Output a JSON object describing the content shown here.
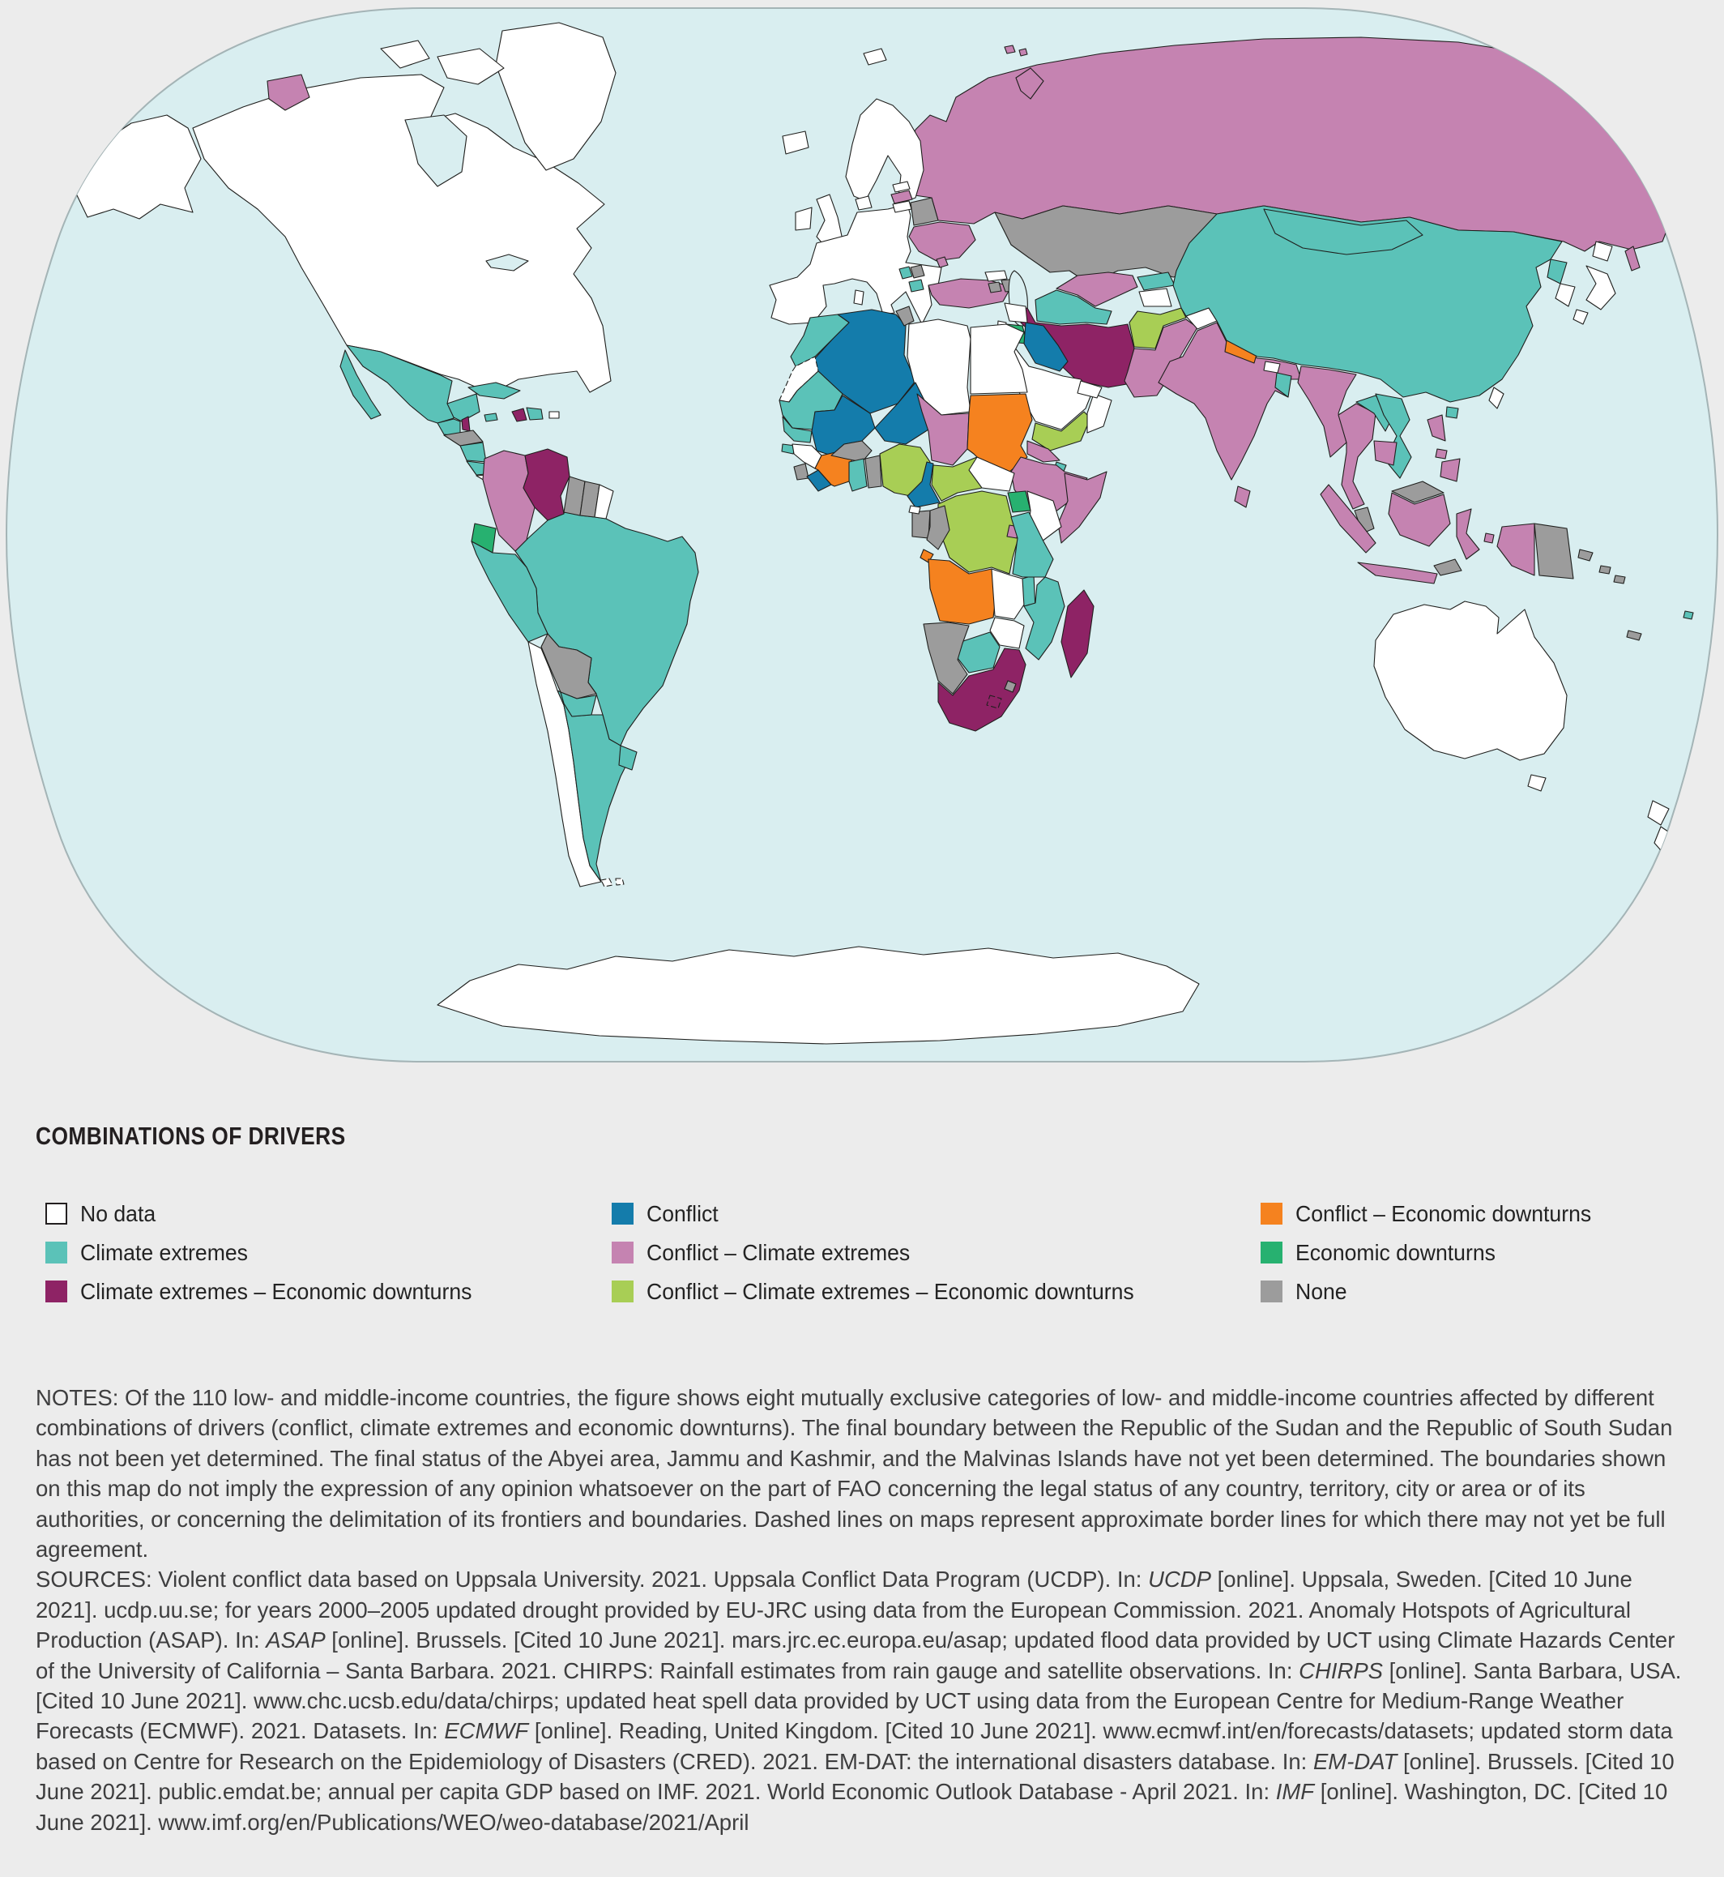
{
  "legend": {
    "title": "COMBINATIONS OF DRIVERS",
    "categories": {
      "no_data": {
        "label": "No data",
        "color": "#FFFFFF"
      },
      "climate": {
        "label": "Climate extremes",
        "color": "#5BC2B8"
      },
      "climate_econ": {
        "label": "Climate extremes – Economic downturns",
        "color": "#8E2365"
      },
      "conflict": {
        "label": "Conflict",
        "color": "#147CAB"
      },
      "conflict_climate": {
        "label": "Conflict – Climate extremes",
        "color": "#C583B1"
      },
      "conflict_climate_econ": {
        "label": "Conflict – Climate extremes – Economic downturns",
        "color": "#A8CE55"
      },
      "conflict_econ": {
        "label": "Conflict – Economic downturns",
        "color": "#F5821F"
      },
      "econ": {
        "label": "Economic downturns",
        "color": "#27B170"
      },
      "none": {
        "label": "None",
        "color": "#9C9C9C"
      }
    },
    "columns": [
      [
        "no_data",
        "climate",
        "climate_econ"
      ],
      [
        "conflict",
        "conflict_climate",
        "conflict_climate_econ"
      ],
      [
        "conflict_econ",
        "econ",
        "none"
      ]
    ]
  },
  "map": {
    "ocean_color": "#D9EEF0",
    "background_color": "#ECECEC",
    "border_color": "#1F1F1D",
    "regions": {
      "alaska": "no_data",
      "canada_usa": "no_data",
      "baffin": "no_data",
      "ellesmere": "no_data",
      "greenland": "no_data",
      "hudson_bay": "water",
      "great_lakes": "water",
      "mexico": "climate",
      "baja": "climate",
      "yucatan": "climate",
      "belize": "climate_econ",
      "guatemala": "climate",
      "honduras": "none",
      "nicaragua": "climate",
      "costa_rica": "climate",
      "panama": "no_data",
      "cuba": "climate",
      "jamaica": "climate",
      "haiti": "climate_econ",
      "dominican_republic": "climate",
      "puerto_rico": "no_data",
      "colombia": "conflict_climate",
      "venezuela": "climate_econ",
      "guyana": "none",
      "suriname": "none",
      "french_guiana": "no_data",
      "ecuador": "econ",
      "peru": "climate",
      "brazil": "climate",
      "bolivia": "none",
      "paraguay": "climate",
      "chile": "no_data",
      "argentina": "climate",
      "uruguay": "climate",
      "falklands": "no_data",
      "iceland": "no_data",
      "ireland": "no_data",
      "uk": "no_data",
      "scandinavia": "no_data",
      "denmark": "no_data",
      "europe_mainland": "no_data",
      "sicily": "no_data",
      "sardinia": "no_data",
      "estonia": "no_data",
      "latvia": "conflict_climate",
      "lithuania": "no_data",
      "belarus": "none",
      "ukraine": "conflict_climate",
      "moldova": "conflict_climate",
      "serbia": "none",
      "bosnia": "climate",
      "albania_mk": "climate",
      "turkey": "conflict_climate",
      "georgia": "no_data",
      "armenia": "none",
      "azerbaijan": "none",
      "russia": "conflict_climate",
      "chukotka": "conflict_climate",
      "novaya_zemlya": "conflict_climate",
      "svalbard": "no_data",
      "franz_josef": "conflict_climate",
      "sakhalin": "conflict_climate",
      "kazakhstan": "none",
      "caspian_sea": "water",
      "uzbekistan": "conflict_climate",
      "turkmenistan": "climate",
      "kyrgyzstan": "climate",
      "tajikistan": "no_data",
      "syria": "no_data",
      "israel_lebanon": "no_data",
      "jordan": "econ",
      "iraq": "conflict",
      "saudi_arabia": "no_data",
      "yemen": "conflict_climate_econ",
      "oman": "no_data",
      "qatar_uae": "no_data",
      "iran": "climate_econ",
      "afghanistan": "conflict_climate_econ",
      "pakistan": "conflict_climate",
      "kashmir": "no_data",
      "india": "conflict_climate",
      "nepal": "conflict_econ",
      "bhutan": "no_data",
      "bangladesh": "climate",
      "sri_lanka": "conflict_climate",
      "china": "climate",
      "mongolia": "climate",
      "north_korea": "climate",
      "south_korea": "no_data",
      "japan_hokkaido": "no_data",
      "japan_honshu": "no_data",
      "japan_kyushu": "no_data",
      "taiwan": "no_data",
      "hainan": "climate",
      "myanmar": "conflict_climate",
      "thailand": "conflict_climate",
      "laos": "climate",
      "vietnam": "climate",
      "cambodia": "conflict_climate",
      "malaysia_peninsula": "none",
      "malaysia_borneo": "none",
      "sumatra": "conflict_climate",
      "java": "conflict_climate",
      "kalimantan": "conflict_climate",
      "sulawesi": "conflict_climate",
      "maluku": "conflict_climate",
      "west_papua": "conflict_climate",
      "timor": "none",
      "png": "none",
      "new_britain": "none",
      "philippines_luzon": "conflict_climate",
      "philippines_visayas": "conflict_climate",
      "philippines_mindanao": "conflict_climate",
      "solomon_islands": "none",
      "fiji": "climate",
      "new_caledonia": "none",
      "australia": "no_data",
      "tasmania": "no_data",
      "nz_north": "no_data",
      "nz_south": "no_data",
      "morocco": "climate",
      "western_sahara": "no_data",
      "algeria": "conflict",
      "tunisia": "none",
      "libya": "no_data",
      "egypt": "no_data",
      "mauritania": "climate",
      "mali": "conflict",
      "niger": "conflict",
      "chad": "conflict_climate",
      "sudan": "conflict_econ",
      "eritrea": "conflict_climate",
      "djibouti": "climate",
      "ethiopia": "conflict_climate",
      "somalia": "conflict_climate",
      "senegal": "climate",
      "guinea_bissau": "climate",
      "guinea": "no_data",
      "sierra_leone": "none",
      "liberia": "conflict",
      "cote_divoire": "conflict_econ",
      "burkina_faso": "none",
      "ghana": "climate",
      "togo_benin": "none",
      "nigeria": "conflict_climate_econ",
      "cameroon": "conflict",
      "car": "conflict_climate_econ",
      "south_sudan": "no_data",
      "uganda": "econ",
      "kenya": "no_data",
      "drc": "conflict_climate_econ",
      "rwanda_burundi": "conflict_climate",
      "gabon": "none",
      "congo": "none",
      "eq_guinea": "no_data",
      "cabinda": "conflict_econ",
      "angola": "conflict_econ",
      "zambia": "no_data",
      "malawi": "climate",
      "tanzania": "climate",
      "mozambique": "climate",
      "zimbabwe": "no_data",
      "botswana": "climate",
      "namibia": "none",
      "south_africa": "climate_econ",
      "lesotho": "climate_econ",
      "eswatini": "none",
      "madagascar": "climate_econ",
      "antarctica": "no_data"
    }
  },
  "notes": {
    "segments": [
      {
        "t": "NOTES: Of the 110 low- and middle-income countries, the figure shows eight mutually exclusive categories of low- and middle-income countries affected by different combinations of drivers (conflict, climate extremes and economic downturns). The final boundary between the Republic of the Sudan and the Republic of South Sudan has not been yet determined. The final status of the Abyei area, Jammu and Kashmir, and the Malvinas Islands have not yet been determined. The boundaries shown on this map do not imply the expression of any opinion whatsoever on the part of FAO concerning the legal status of any country, territory, city or area or of its authorities, or concerning the delimitation of its frontiers and boundaries. Dashed lines on maps represent approximate border lines for which there may not yet be full agreement."
      }
    ]
  },
  "sources": {
    "segments": [
      {
        "t": "SOURCES: Violent conflict data based on Uppsala University. 2021. Uppsala Conflict Data Program (UCDP). In: "
      },
      {
        "t": "UCDP",
        "i": true
      },
      {
        "t": " [online]. Uppsala, Sweden. [Cited 10 June 2021]. ucdp.uu.se; for years 2000–2005 updated drought provided by EU-JRC using data from the European Commission. 2021. Anomaly Hotspots of Agricultural Production (ASAP). In: "
      },
      {
        "t": "ASAP",
        "i": true
      },
      {
        "t": " [online]. Brussels. [Cited 10 June 2021]. mars.jrc.ec.europa.eu/asap; updated flood data provided by UCT using Climate Hazards Center of the University of California – Santa Barbara. 2021. CHIRPS: Rainfall estimates from rain gauge and satellite observations. In: "
      },
      {
        "t": "CHIRPS",
        "i": true
      },
      {
        "t": " [online]. Santa Barbara, USA. [Cited 10 June 2021]. www.chc.ucsb.edu/data/chirps; updated heat spell data provided by UCT using data from the European Centre for Medium-Range Weather Forecasts (ECMWF). 2021. Datasets. In: "
      },
      {
        "t": "ECMWF",
        "i": true
      },
      {
        "t": " [online]. Reading, United Kingdom. [Cited 10 June 2021]. www.ecmwf.int/en/forecasts/datasets; updated storm data based on Centre for Research on the Epidemiology of Disasters (CRED). 2021. EM-DAT: the international disasters database. In: "
      },
      {
        "t": "EM-DAT",
        "i": true
      },
      {
        "t": " [online]. Brussels. [Cited 10 June 2021]. public.emdat.be; annual per capita GDP based on IMF. 2021. World Economic Outlook Database - April 2021. In: "
      },
      {
        "t": "IMF",
        "i": true
      },
      {
        "t": " [online]. Washington, DC. [Cited 10 June 2021]. www.imf.org/en/Publications/WEO/weo-database/2021/April"
      }
    ]
  }
}
